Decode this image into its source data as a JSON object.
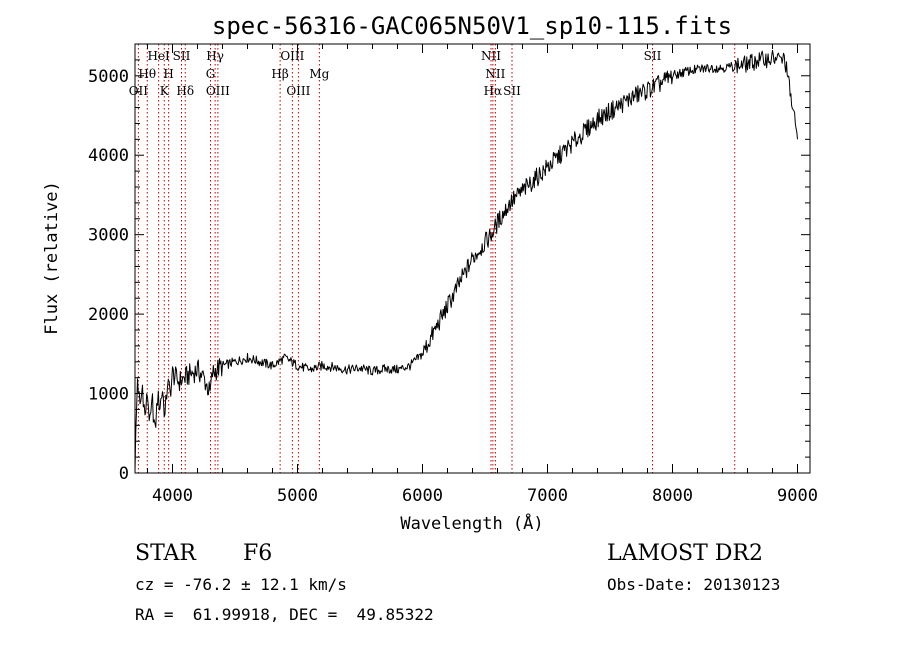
{
  "chart_data": {
    "type": "line",
    "title": "spec-56316-GAC065N50V1_sp10-115.fits",
    "xlabel": "Wavelength (Å)",
    "ylabel": "Flux (relative)",
    "xlim": [
      3700,
      9100
    ],
    "ylim": [
      0,
      5400
    ],
    "x_ticks": [
      4000,
      5000,
      6000,
      7000,
      8000,
      9000
    ],
    "y_ticks": [
      0,
      1000,
      2000,
      3000,
      4000,
      5000
    ],
    "series": [
      {
        "x": [
          3700,
          3720,
          3740,
          3760,
          3780,
          3800,
          3820,
          3840,
          3860,
          3880,
          3900,
          3920,
          3940,
          3960,
          3980,
          4000,
          4050,
          4100,
          4150,
          4200,
          4250,
          4300,
          4320,
          4350,
          4400,
          4500,
          4600,
          4700,
          4800,
          4900,
          5000,
          5100,
          5200,
          5300,
          5400,
          5500,
          5600,
          5700,
          5800,
          5900,
          6000,
          6100,
          6200,
          6300,
          6400,
          6500,
          6550,
          6600,
          6700,
          6800,
          6900,
          7000,
          7100,
          7200,
          7300,
          7400,
          7500,
          7600,
          7700,
          7800,
          7900,
          8000,
          8100,
          8200,
          8300,
          8400,
          8500,
          8600,
          8700,
          8800,
          8900,
          9000
        ],
        "y": [
          100,
          1200,
          800,
          1100,
          700,
          1000,
          600,
          900,
          500,
          950,
          850,
          1050,
          700,
          1150,
          1000,
          1250,
          1150,
          1200,
          1250,
          1300,
          1200,
          1000,
          1250,
          1300,
          1350,
          1400,
          1450,
          1400,
          1350,
          1450,
          1350,
          1300,
          1350,
          1330,
          1300,
          1320,
          1280,
          1310,
          1300,
          1350,
          1500,
          1800,
          2100,
          2400,
          2700,
          2900,
          3000,
          3150,
          3400,
          3550,
          3700,
          3850,
          4000,
          4150,
          4300,
          4450,
          4550,
          4650,
          4750,
          4820,
          4900,
          5000,
          5050,
          5080,
          5100,
          5100,
          5120,
          5150,
          5200,
          5220,
          5200,
          4200
        ]
      }
    ],
    "lines": [
      {
        "x": 3727,
        "label": "OII",
        "row": 3
      },
      {
        "x": 3798,
        "label": "Hθ",
        "row": 2
      },
      {
        "x": 3889,
        "label": "HeI",
        "row": 1
      },
      {
        "x": 3934,
        "label": "K",
        "row": 3
      },
      {
        "x": 3969,
        "label": "H",
        "row": 2
      },
      {
        "x": 4072,
        "label": "SII",
        "row": 1
      },
      {
        "x": 4102,
        "label": "Hδ",
        "row": 3
      },
      {
        "x": 4304,
        "label": "G",
        "row": 2
      },
      {
        "x": 4341,
        "label": "Hγ",
        "row": 1
      },
      {
        "x": 4363,
        "label": "OIII",
        "row": 3
      },
      {
        "x": 4861,
        "label": "Hβ",
        "row": 2
      },
      {
        "x": 4959,
        "label": "OIII",
        "row": 1
      },
      {
        "x": 5007,
        "label": "OIII",
        "row": 3
      },
      {
        "x": 5175,
        "label": "Mg",
        "row": 2
      },
      {
        "x": 6548,
        "label": "NII",
        "row": 1
      },
      {
        "x": 6563,
        "label": "Hα",
        "row": 3
      },
      {
        "x": 6583,
        "label": "NII",
        "row": 2
      },
      {
        "x": 6716,
        "label": "SII",
        "row": 3
      },
      {
        "x": 7840,
        "label": "SII",
        "row": 1
      },
      {
        "x": 8498,
        "label": "",
        "row": 0
      }
    ],
    "line_color": "#c00000",
    "grid": false
  },
  "info": {
    "class_label": "STAR",
    "subclass": "F6",
    "survey": "LAMOST DR2",
    "cz": "cz = -76.2 ± 12.1 km/s",
    "obs_date": "Obs-Date: 20130123",
    "radec": "RA =  61.99918, DEC =  49.85322"
  }
}
